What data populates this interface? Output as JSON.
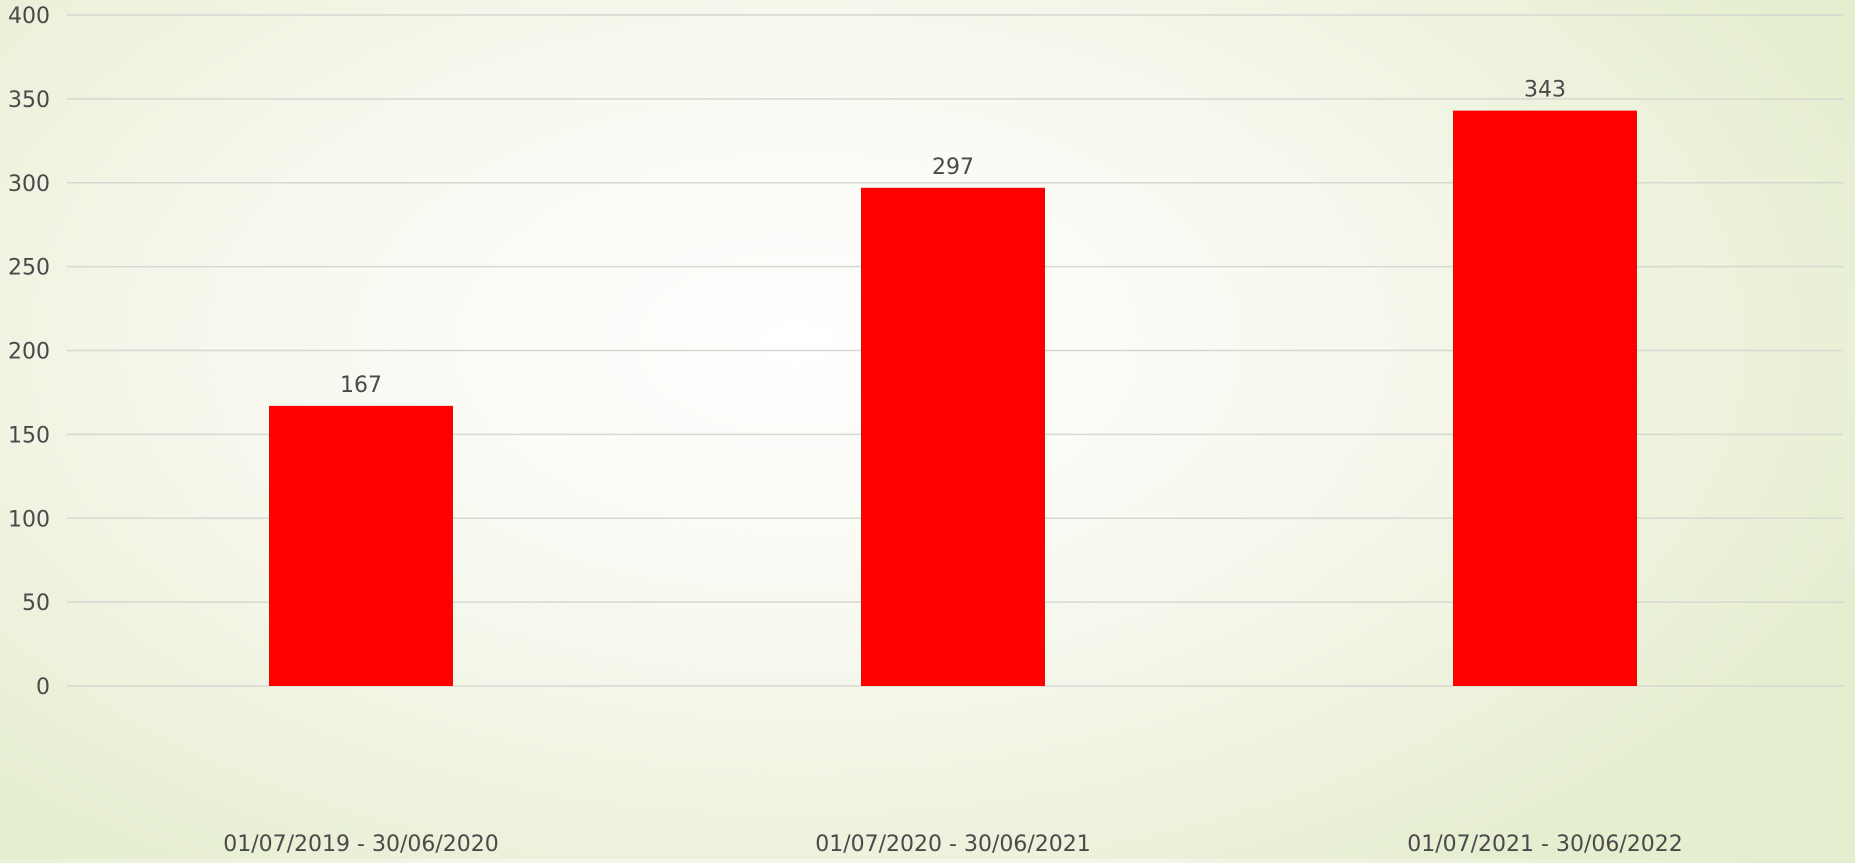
{
  "chart_data": {
    "type": "bar",
    "title": "",
    "xlabel": "",
    "ylabel": "",
    "categories": [
      "01/07/2019 - 30/06/2020",
      "01/07/2020 - 30/06/2021",
      "01/07/2021 - 30/06/2022"
    ],
    "values": [
      167,
      297,
      343
    ],
    "data_labels": [
      "167",
      "297",
      "343"
    ],
    "ylim": [
      0,
      400
    ],
    "yticks": [
      0,
      50,
      100,
      150,
      200,
      250,
      300,
      350,
      400
    ],
    "ytick_labels": [
      "0",
      "50",
      "100",
      "150",
      "200",
      "250",
      "300",
      "350",
      "400"
    ],
    "grid": true,
    "legend": "none",
    "colors": {
      "bar": "#ff0000",
      "gridline": "#d6d8d2",
      "text": "#4a4a4a"
    }
  }
}
